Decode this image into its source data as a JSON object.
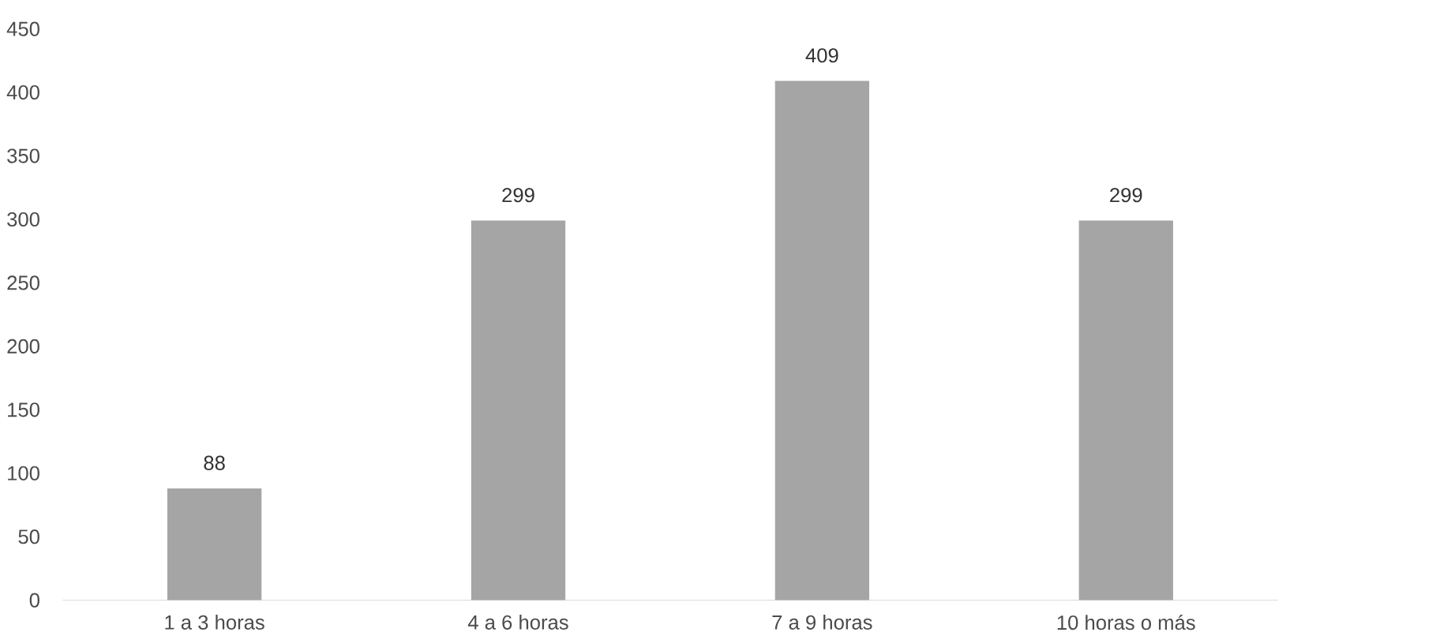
{
  "chart_data": {
    "type": "bar",
    "categories": [
      "1 a 3 horas",
      "4 a 6 horas",
      "7 a 9 horas",
      "10 horas o más"
    ],
    "values": [
      88,
      299,
      409,
      299
    ],
    "color": "#a5a5a5",
    "ylim": [
      0,
      450
    ],
    "yticks": [
      0,
      50,
      100,
      150,
      200,
      250,
      300,
      350,
      400,
      450
    ],
    "data_labels": true
  }
}
